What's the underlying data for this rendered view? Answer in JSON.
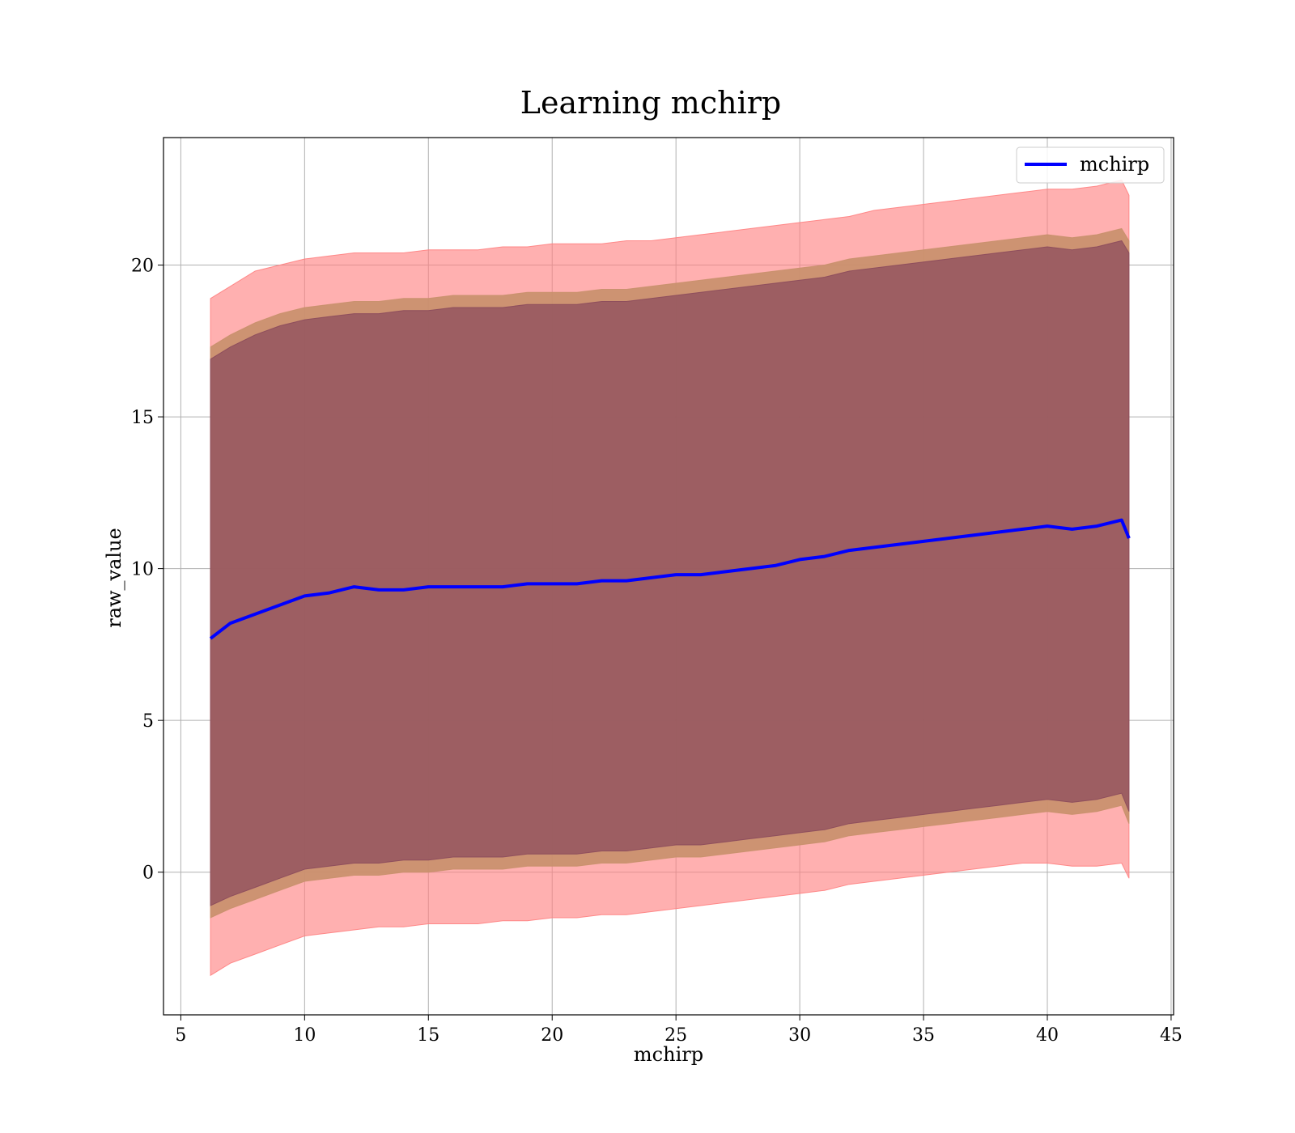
{
  "chart_data": {
    "type": "line",
    "title": "Learning mchirp",
    "xlabel": "mchirp",
    "ylabel": "raw_value",
    "xlim": [
      4.3,
      45.1
    ],
    "ylim": [
      -4.7,
      24.2
    ],
    "xticks": [
      5,
      10,
      15,
      20,
      25,
      30,
      35,
      40,
      45
    ],
    "yticks": [
      0,
      5,
      10,
      15,
      20
    ],
    "grid": true,
    "legend": {
      "placement": "top-right",
      "entries": [
        "mchirp"
      ]
    },
    "colors": {
      "line": "#0000ff",
      "band_outer": "#ff7f7f",
      "band_middle": "#c8906c",
      "band_inner": "#8b4a5c"
    },
    "series": [
      {
        "name": "mchirp",
        "x": [
          6.2,
          7,
          8,
          9,
          10,
          11,
          12,
          13,
          14,
          15,
          16,
          17,
          18,
          19,
          20,
          21,
          22,
          23,
          24,
          25,
          26,
          27,
          28,
          29,
          30,
          31,
          32,
          33,
          34,
          35,
          36,
          37,
          38,
          39,
          40,
          41,
          42,
          43,
          43.3
        ],
        "y": [
          7.7,
          8.2,
          8.5,
          8.8,
          9.1,
          9.2,
          9.4,
          9.3,
          9.3,
          9.4,
          9.4,
          9.4,
          9.4,
          9.5,
          9.5,
          9.5,
          9.6,
          9.6,
          9.7,
          9.8,
          9.8,
          9.9,
          10.0,
          10.1,
          10.3,
          10.4,
          10.6,
          10.7,
          10.8,
          10.9,
          11.0,
          11.1,
          11.2,
          11.3,
          11.4,
          11.3,
          11.4,
          11.6,
          11.0
        ]
      }
    ],
    "bands": [
      {
        "name": "outer",
        "x": [
          6.2,
          7,
          8,
          9,
          10,
          11,
          12,
          13,
          14,
          15,
          16,
          17,
          18,
          19,
          20,
          21,
          22,
          23,
          24,
          25,
          26,
          27,
          28,
          29,
          30,
          31,
          32,
          33,
          34,
          35,
          36,
          37,
          38,
          39,
          40,
          41,
          42,
          43,
          43.3
        ],
        "upper": [
          18.9,
          19.3,
          19.8,
          20.0,
          20.2,
          20.3,
          20.4,
          20.4,
          20.4,
          20.5,
          20.5,
          20.5,
          20.6,
          20.6,
          20.7,
          20.7,
          20.7,
          20.8,
          20.8,
          20.9,
          21.0,
          21.1,
          21.2,
          21.3,
          21.4,
          21.5,
          21.6,
          21.8,
          21.9,
          22.0,
          22.1,
          22.2,
          22.3,
          22.4,
          22.5,
          22.5,
          22.6,
          22.8,
          22.3
        ],
        "lower": [
          -3.4,
          -3.0,
          -2.7,
          -2.4,
          -2.1,
          -2.0,
          -1.9,
          -1.8,
          -1.8,
          -1.7,
          -1.7,
          -1.7,
          -1.6,
          -1.6,
          -1.5,
          -1.5,
          -1.4,
          -1.4,
          -1.3,
          -1.2,
          -1.1,
          -1.0,
          -0.9,
          -0.8,
          -0.7,
          -0.6,
          -0.4,
          -0.3,
          -0.2,
          -0.1,
          0.0,
          0.1,
          0.2,
          0.3,
          0.3,
          0.2,
          0.2,
          0.3,
          -0.2
        ]
      },
      {
        "name": "middle",
        "x": [
          6.2,
          7,
          8,
          9,
          10,
          11,
          12,
          13,
          14,
          15,
          16,
          17,
          18,
          19,
          20,
          21,
          22,
          23,
          24,
          25,
          26,
          27,
          28,
          29,
          30,
          31,
          32,
          33,
          34,
          35,
          36,
          37,
          38,
          39,
          40,
          41,
          42,
          43,
          43.3
        ],
        "upper": [
          17.3,
          17.7,
          18.1,
          18.4,
          18.6,
          18.7,
          18.8,
          18.8,
          18.9,
          18.9,
          19.0,
          19.0,
          19.0,
          19.1,
          19.1,
          19.1,
          19.2,
          19.2,
          19.3,
          19.4,
          19.5,
          19.6,
          19.7,
          19.8,
          19.9,
          20.0,
          20.2,
          20.3,
          20.4,
          20.5,
          20.6,
          20.7,
          20.8,
          20.9,
          21.0,
          20.9,
          21.0,
          21.2,
          20.8
        ],
        "lower": [
          -1.5,
          -1.2,
          -0.9,
          -0.6,
          -0.3,
          -0.2,
          -0.1,
          -0.1,
          0.0,
          0.0,
          0.1,
          0.1,
          0.1,
          0.2,
          0.2,
          0.2,
          0.3,
          0.3,
          0.4,
          0.5,
          0.5,
          0.6,
          0.7,
          0.8,
          0.9,
          1.0,
          1.2,
          1.3,
          1.4,
          1.5,
          1.6,
          1.7,
          1.8,
          1.9,
          2.0,
          1.9,
          2.0,
          2.2,
          1.6
        ]
      },
      {
        "name": "inner",
        "x": [
          6.2,
          7,
          8,
          9,
          10,
          11,
          12,
          13,
          14,
          15,
          16,
          17,
          18,
          19,
          20,
          21,
          22,
          23,
          24,
          25,
          26,
          27,
          28,
          29,
          30,
          31,
          32,
          33,
          34,
          35,
          36,
          37,
          38,
          39,
          40,
          41,
          42,
          43,
          43.3
        ],
        "upper": [
          16.9,
          17.3,
          17.7,
          18.0,
          18.2,
          18.3,
          18.4,
          18.4,
          18.5,
          18.5,
          18.6,
          18.6,
          18.6,
          18.7,
          18.7,
          18.7,
          18.8,
          18.8,
          18.9,
          19.0,
          19.1,
          19.2,
          19.3,
          19.4,
          19.5,
          19.6,
          19.8,
          19.9,
          20.0,
          20.1,
          20.2,
          20.3,
          20.4,
          20.5,
          20.6,
          20.5,
          20.6,
          20.8,
          20.4
        ],
        "lower": [
          -1.1,
          -0.8,
          -0.5,
          -0.2,
          0.1,
          0.2,
          0.3,
          0.3,
          0.4,
          0.4,
          0.5,
          0.5,
          0.5,
          0.6,
          0.6,
          0.6,
          0.7,
          0.7,
          0.8,
          0.9,
          0.9,
          1.0,
          1.1,
          1.2,
          1.3,
          1.4,
          1.6,
          1.7,
          1.8,
          1.9,
          2.0,
          2.1,
          2.2,
          2.3,
          2.4,
          2.3,
          2.4,
          2.6,
          2.0
        ]
      }
    ]
  }
}
